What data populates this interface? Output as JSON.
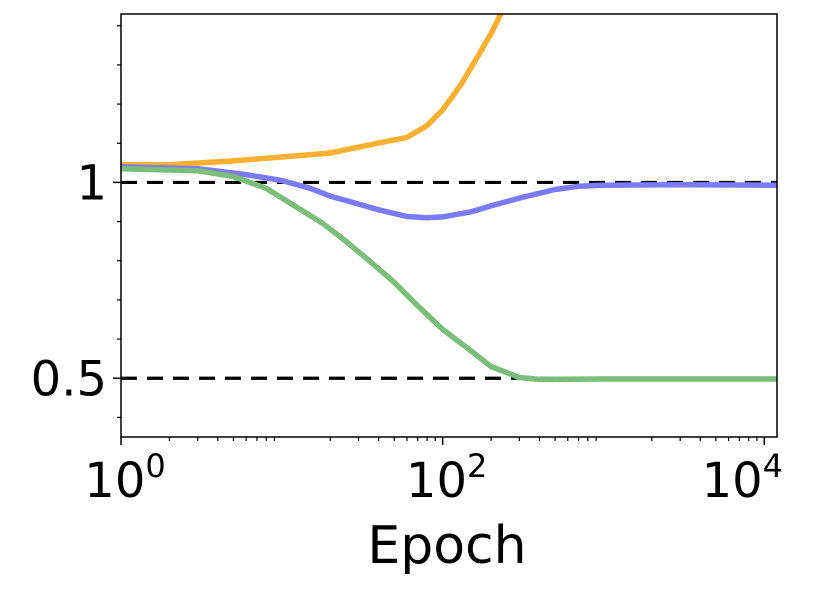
{
  "chart_data": {
    "type": "line",
    "title": "",
    "xlabel": "Epoch",
    "ylabel": "",
    "x_scale": "log",
    "xlim": [
      1,
      12000
    ],
    "ylim": [
      0.35,
      1.43
    ],
    "x_ticks": [
      {
        "value": 1,
        "base": "10",
        "exp": "0"
      },
      {
        "value": 100,
        "base": "10",
        "exp": "2"
      },
      {
        "value": 10000,
        "base": "10",
        "exp": "4"
      }
    ],
    "y_ticks": [
      {
        "value": 0.5,
        "label": "0.5"
      },
      {
        "value": 1,
        "label": "1"
      }
    ],
    "y_minor_ticks": [
      0.4,
      0.6,
      0.7,
      0.8,
      0.9,
      1.1,
      1.2,
      1.3,
      1.4
    ],
    "reference_lines": [
      {
        "y": 1,
        "style": "dashed",
        "color": "#000000"
      },
      {
        "y": 0.5,
        "style": "dashed",
        "color": "#000000"
      }
    ],
    "grid": false,
    "legend": "none",
    "series": [
      {
        "color": "#fbb031",
        "points": [
          [
            1,
            1.045
          ],
          [
            2,
            1.045
          ],
          [
            5,
            1.055
          ],
          [
            10,
            1.065
          ],
          [
            20,
            1.075
          ],
          [
            30,
            1.09
          ],
          [
            45,
            1.105
          ],
          [
            60,
            1.115
          ],
          [
            80,
            1.145
          ],
          [
            100,
            1.185
          ],
          [
            130,
            1.25
          ],
          [
            170,
            1.33
          ],
          [
            200,
            1.38
          ],
          [
            230,
            1.43
          ]
        ]
      },
      {
        "color": "#7b7bf7",
        "points": [
          [
            1,
            1.04
          ],
          [
            3,
            1.035
          ],
          [
            6,
            1.02
          ],
          [
            10,
            1.005
          ],
          [
            15,
            0.985
          ],
          [
            20,
            0.965
          ],
          [
            30,
            0.945
          ],
          [
            40,
            0.93
          ],
          [
            60,
            0.913
          ],
          [
            80,
            0.91
          ],
          [
            100,
            0.912
          ],
          [
            150,
            0.925
          ],
          [
            200,
            0.94
          ],
          [
            300,
            0.96
          ],
          [
            500,
            0.982
          ],
          [
            700,
            0.99
          ],
          [
            1000,
            0.993
          ],
          [
            3000,
            0.994
          ],
          [
            12000,
            0.993
          ]
        ]
      },
      {
        "color": "#7bbd7b",
        "points": [
          [
            1,
            1.035
          ],
          [
            3,
            1.03
          ],
          [
            5,
            1.015
          ],
          [
            8,
            0.985
          ],
          [
            12,
            0.94
          ],
          [
            18,
            0.895
          ],
          [
            25,
            0.85
          ],
          [
            35,
            0.8
          ],
          [
            50,
            0.745
          ],
          [
            70,
            0.685
          ],
          [
            100,
            0.625
          ],
          [
            150,
            0.57
          ],
          [
            200,
            0.53
          ],
          [
            300,
            0.502
          ],
          [
            400,
            0.497
          ],
          [
            1000,
            0.498
          ],
          [
            12000,
            0.498
          ]
        ]
      }
    ]
  }
}
